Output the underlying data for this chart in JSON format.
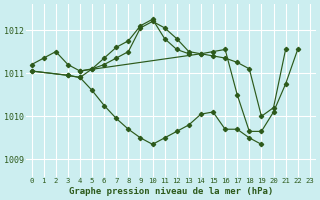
{
  "bg_color": "#cceef0",
  "grid_color": "#ffffff",
  "line_color": "#2d5a1b",
  "xlabel": "Graphe pression niveau de la mer (hPa)",
  "xlim": [
    -0.5,
    23.5
  ],
  "ylim": [
    1008.6,
    1012.6
  ],
  "yticks": [
    1009,
    1010,
    1011,
    1012
  ],
  "xticks": [
    0,
    1,
    2,
    3,
    4,
    5,
    6,
    7,
    8,
    9,
    10,
    11,
    12,
    13,
    14,
    15,
    16,
    17,
    18,
    19,
    20,
    21,
    22,
    23
  ],
  "series": [
    {
      "x": [
        0,
        1,
        2,
        3,
        4,
        5,
        6,
        7,
        8,
        9,
        10,
        11,
        12,
        13,
        14,
        15,
        16,
        17,
        18,
        19,
        20,
        21
      ],
      "y": [
        1011.2,
        1011.35,
        1011.5,
        1011.2,
        1011.05,
        1011.1,
        1011.2,
        1011.35,
        1011.5,
        1012.05,
        1012.2,
        1012.05,
        1011.8,
        1011.5,
        1011.45,
        1011.4,
        1011.35,
        1011.25,
        1011.1,
        1010.0,
        1010.2,
        1011.55
      ]
    },
    {
      "x": [
        0,
        3,
        4,
        5,
        6,
        7,
        8,
        9,
        10,
        11,
        12,
        13
      ],
      "y": [
        1011.05,
        1010.95,
        1010.9,
        1011.1,
        1011.35,
        1011.6,
        1011.75,
        1012.1,
        1012.25,
        1011.8,
        1011.55,
        1011.45
      ]
    },
    {
      "x": [
        0,
        3,
        4,
        5,
        6,
        7,
        8,
        9,
        10,
        11,
        12,
        13,
        14,
        15,
        16,
        17,
        18,
        19
      ],
      "y": [
        1011.05,
        1010.95,
        1010.9,
        1010.6,
        1010.25,
        1009.95,
        1009.7,
        1009.5,
        1009.35,
        1009.5,
        1009.65,
        1009.8,
        1010.05,
        1010.1,
        1009.7,
        1009.7,
        1009.5,
        1009.35
      ]
    },
    {
      "x": [
        4,
        14,
        15,
        16,
        17,
        18,
        19,
        20,
        21,
        22
      ],
      "y": [
        1011.05,
        1011.45,
        1011.5,
        1011.55,
        1010.5,
        1009.65,
        1009.65,
        1010.1,
        1010.75,
        1011.55
      ]
    }
  ]
}
